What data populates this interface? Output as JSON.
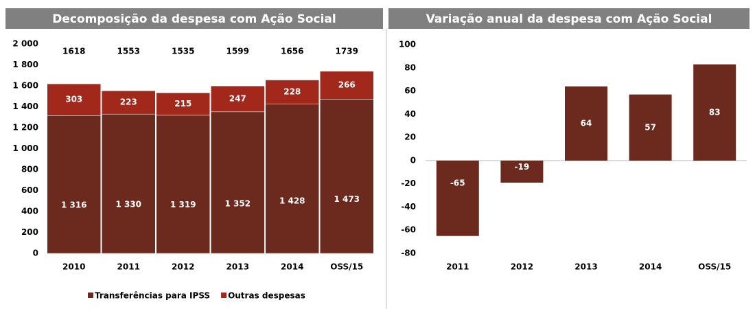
{
  "chart_data": [
    {
      "type": "stacked_bar",
      "title": "Decomposição da despesa com Ação Social",
      "categories": [
        "2010",
        "2011",
        "2012",
        "2013",
        "2014",
        "OSS/15"
      ],
      "series": [
        {
          "name": "Transferências para IPSS",
          "color": "#6b2a1d",
          "values": [
            1316,
            1330,
            1319,
            1352,
            1428,
            1473
          ],
          "value_labels": [
            "1 316",
            "1 330",
            "1 319",
            "1 352",
            "1 428",
            "1 473"
          ]
        },
        {
          "name": "Outras despesas",
          "color": "#a3281c",
          "values": [
            303,
            223,
            215,
            247,
            228,
            266
          ]
        }
      ],
      "totals": [
        1618,
        1553,
        1535,
        1599,
        1656,
        1739
      ],
      "ylim": [
        0,
        2000
      ],
      "yticks": [
        0,
        200,
        400,
        600,
        800,
        {
          "value": 1000,
          "label": "1 000"
        },
        {
          "value": 1200,
          "label": "1 200"
        },
        {
          "value": 1400,
          "label": "1 400"
        },
        {
          "value": 1600,
          "label": "1 600"
        },
        {
          "value": 1800,
          "label": "1 800"
        },
        {
          "value": 2000,
          "label": "2 000"
        }
      ],
      "legend": "bottom"
    },
    {
      "type": "bar",
      "title": "Variação anual da despesa com Ação Social",
      "categories": [
        "2011",
        "2012",
        "2013",
        "2014",
        "OSS/15"
      ],
      "values": [
        -65,
        -19,
        64,
        57,
        83
      ],
      "color": "#6b2a1d",
      "ylim": [
        -80,
        100
      ],
      "yticks": [
        -80,
        -60,
        -40,
        -20,
        0,
        20,
        40,
        60,
        80,
        100
      ]
    }
  ]
}
